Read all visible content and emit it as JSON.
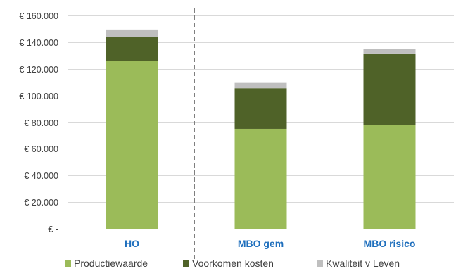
{
  "chart_data": {
    "type": "bar",
    "stacked": true,
    "categories": [
      "HO",
      "MBO gem",
      "MBO risico"
    ],
    "series": [
      {
        "name": "Productiewaarde",
        "values": [
          126000,
          75000,
          78000
        ],
        "color": "#9bbb59"
      },
      {
        "name": "Voorkomen kosten",
        "values": [
          18000,
          30500,
          53000
        ],
        "color": "#4f6228"
      },
      {
        "name": "Kwaliteit v Leven",
        "values": [
          5500,
          4000,
          4000
        ],
        "color": "#bfbfbf"
      }
    ],
    "ylim": [
      0,
      160000
    ],
    "yticks": [
      0,
      20000,
      40000,
      60000,
      80000,
      100000,
      120000,
      140000,
      160000
    ],
    "ytick_labels": [
      "€ -",
      "€ 20.000",
      "€ 40.000",
      "€ 60.000",
      "€ 80.000",
      "€ 100.000",
      "€ 120.000",
      "€ 140.000",
      "€ 160.000"
    ],
    "grid": true,
    "category_label_color": "#1f6fbd",
    "divider": {
      "style": "dashed",
      "between": [
        "HO",
        "MBO gem"
      ],
      "color": "#7f7f7f"
    },
    "legend_position": "bottom"
  }
}
